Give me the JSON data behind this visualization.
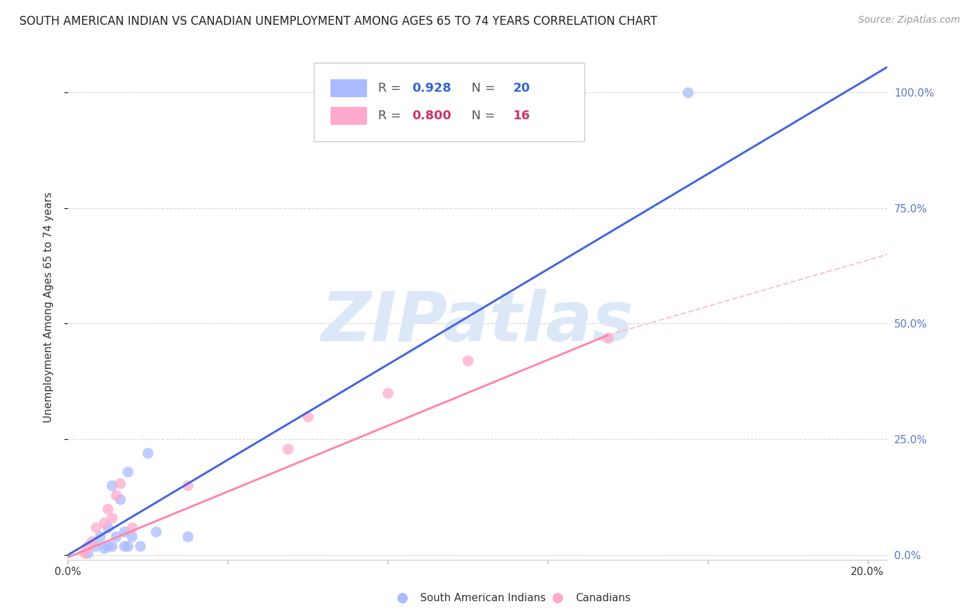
{
  "title": "SOUTH AMERICAN INDIAN VS CANADIAN UNEMPLOYMENT AMONG AGES 65 TO 74 YEARS CORRELATION CHART",
  "source": "Source: ZipAtlas.com",
  "ylabel": "Unemployment Among Ages 65 to 74 years",
  "xlim": [
    0.0,
    0.205
  ],
  "ylim": [
    -0.01,
    1.08
  ],
  "ytick_labels": [
    "0.0%",
    "25.0%",
    "50.0%",
    "75.0%",
    "100.0%"
  ],
  "ytick_values": [
    0.0,
    0.25,
    0.5,
    0.75,
    1.0
  ],
  "xtick_values": [
    0.0,
    0.04,
    0.08,
    0.12,
    0.16,
    0.2
  ],
  "xtick_labels": [
    "0.0%",
    "",
    "",
    "",
    "",
    "20.0%"
  ],
  "blue_r": 0.928,
  "blue_n": 20,
  "pink_r": 0.8,
  "pink_n": 16,
  "blue_scatter_color": "#aabbff",
  "pink_scatter_color": "#ffaacc",
  "blue_line_color": "#4466dd",
  "pink_line_color": "#ff88aa",
  "pink_dash_color": "#ffbbcc",
  "watermark_color": "#dce8f8",
  "background_color": "#ffffff",
  "grid_color": "#cccccc",
  "legend_label_blue": "South American Indians",
  "legend_label_pink": "Canadians",
  "right_tick_color": "#5577cc",
  "blue_scatter_x": [
    0.005,
    0.007,
    0.008,
    0.009,
    0.01,
    0.01,
    0.011,
    0.011,
    0.012,
    0.013,
    0.014,
    0.014,
    0.015,
    0.015,
    0.016,
    0.018,
    0.02,
    0.022,
    0.03,
    0.155
  ],
  "blue_scatter_y": [
    0.005,
    0.02,
    0.04,
    0.015,
    0.06,
    0.02,
    0.15,
    0.02,
    0.04,
    0.12,
    0.05,
    0.02,
    0.18,
    0.02,
    0.04,
    0.02,
    0.22,
    0.05,
    0.04,
    1.0
  ],
  "pink_scatter_x": [
    0.004,
    0.005,
    0.006,
    0.007,
    0.009,
    0.01,
    0.011,
    0.012,
    0.013,
    0.016,
    0.03,
    0.055,
    0.06,
    0.08,
    0.1,
    0.135
  ],
  "pink_scatter_y": [
    0.005,
    0.02,
    0.03,
    0.06,
    0.07,
    0.1,
    0.08,
    0.13,
    0.155,
    0.06,
    0.15,
    0.23,
    0.3,
    0.35,
    0.42,
    0.47
  ],
  "blue_trendline_x": [
    0.0,
    0.205
  ],
  "blue_trendline_y": [
    0.0,
    1.055
  ],
  "pink_trendline_x": [
    0.0,
    0.135
  ],
  "pink_trendline_y": [
    -0.005,
    0.475
  ],
  "pink_dashline_x": [
    0.135,
    0.205
  ],
  "pink_dashline_y": [
    0.475,
    0.65
  ]
}
